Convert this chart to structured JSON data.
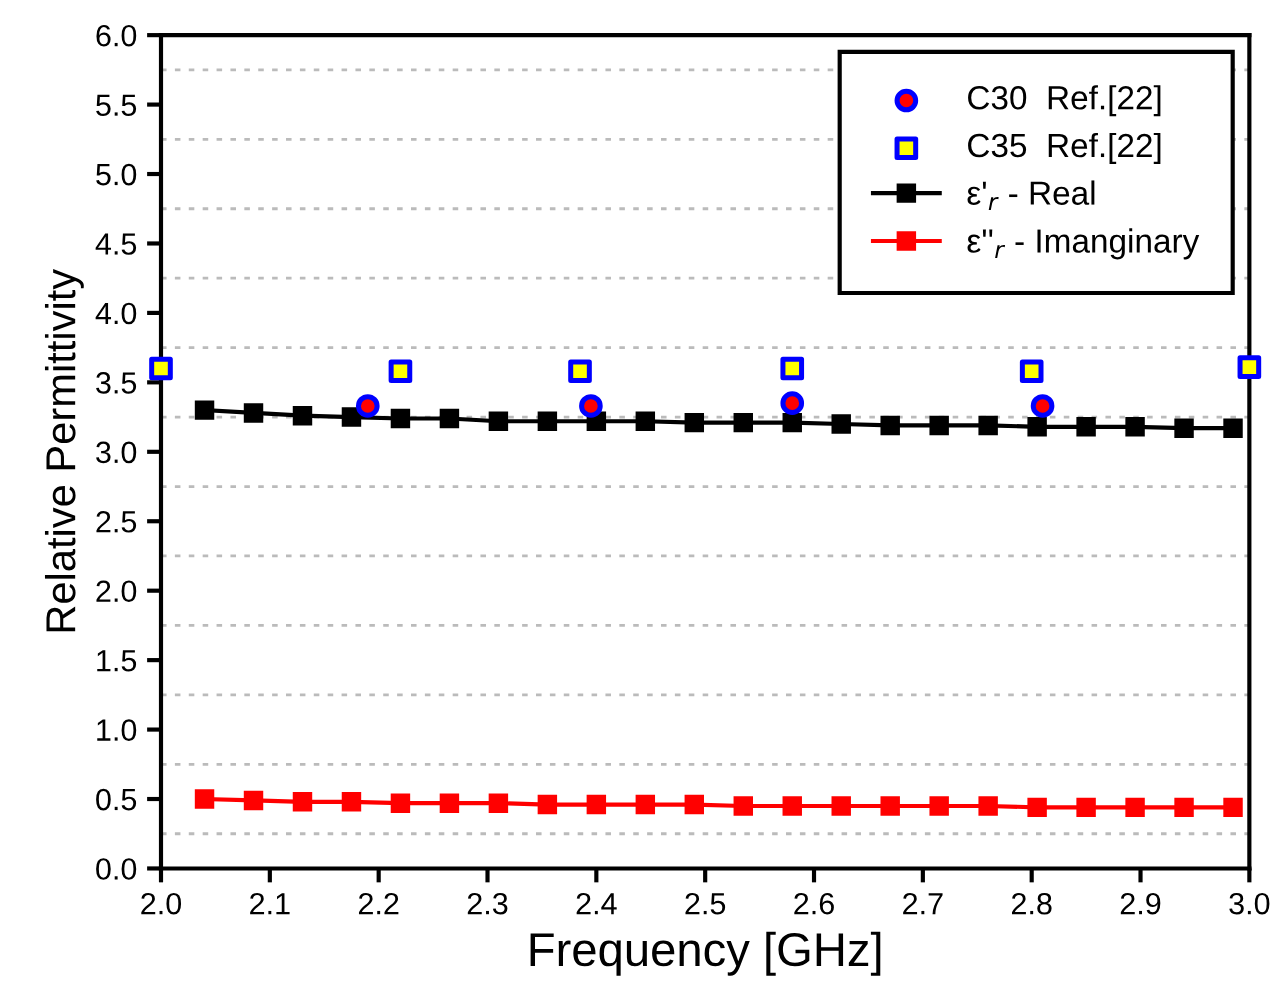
{
  "chart_data": {
    "type": "line",
    "xlabel": "Frequency [GHz]",
    "ylabel": "Relative Permittivity",
    "xlim": [
      2.0,
      3.0
    ],
    "xticks": [
      {
        "value": 2.0,
        "label": "2.0"
      },
      2.1,
      2.2,
      2.3,
      2.4,
      2.5,
      2.6,
      2.7,
      2.8,
      2.9,
      {
        "value": 3.0,
        "label": "3.0"
      }
    ],
    "ylim": [
      0,
      6
    ],
    "yticks": [
      {
        "value": 0,
        "label": "0.0"
      },
      {
        "value": 0.25,
        "label": null
      },
      0.5,
      {
        "value": 0.75,
        "label": null
      },
      {
        "value": 1,
        "label": "1.0"
      },
      {
        "value": 1.25,
        "label": null
      },
      1.5,
      {
        "value": 1.75,
        "label": null
      },
      {
        "value": 2,
        "label": "2.0"
      },
      {
        "value": 2.25,
        "label": null
      },
      2.5,
      {
        "value": 2.75,
        "label": null
      },
      {
        "value": 3,
        "label": "3.0"
      },
      {
        "value": 3.25,
        "label": null
      },
      3.5,
      {
        "value": 3.75,
        "label": null
      },
      {
        "value": 4,
        "label": "4.0"
      },
      {
        "value": 4.25,
        "label": null
      },
      4.5,
      {
        "value": 4.75,
        "label": null
      },
      {
        "value": 5,
        "label": "5.0"
      },
      {
        "value": 5.25,
        "label": null
      },
      5.5,
      {
        "value": 5.75,
        "label": null
      },
      {
        "value": 6,
        "label": "6.0"
      }
    ],
    "grid": "y",
    "legend": "top right",
    "series": [
      {
        "name": "C30  Ref.[22]",
        "type": "scatter",
        "marker": "circle",
        "color": "#ff0000",
        "x": [
          2.19,
          2.395,
          2.58,
          2.81
        ],
        "values": [
          3.33,
          3.33,
          3.35,
          3.33
        ]
      },
      {
        "name": "C35  Ref.[22]",
        "type": "scatter",
        "marker": "square",
        "color": "#ffff00",
        "x": [
          2.0,
          2.22,
          2.385,
          2.58,
          2.8,
          3.0
        ],
        "values": [
          3.6,
          3.58,
          3.58,
          3.6,
          3.58,
          3.61
        ]
      },
      {
        "name": "ε'$_{r}$ - Real",
        "marker": "square",
        "color": "#000000",
        "x": [
          2.04,
          2.085,
          2.13,
          2.175,
          2.22,
          2.265,
          2.31,
          2.355,
          2.4,
          2.445,
          2.49,
          2.535,
          2.58,
          2.625,
          2.67,
          2.715,
          2.76,
          2.805,
          2.85,
          2.895,
          2.94,
          2.985
        ],
        "values": [
          3.3,
          3.28,
          3.26,
          3.25,
          3.24,
          3.24,
          3.22,
          3.22,
          3.22,
          3.22,
          3.21,
          3.21,
          3.21,
          3.2,
          3.19,
          3.19,
          3.19,
          3.18,
          3.18,
          3.18,
          3.17,
          3.17
        ]
      },
      {
        "name": "ε''$_{r}$ - Imanginary",
        "marker": "square",
        "color": "#ff0000",
        "x": [
          2.04,
          2.085,
          2.13,
          2.175,
          2.22,
          2.265,
          2.31,
          2.355,
          2.4,
          2.445,
          2.49,
          2.535,
          2.58,
          2.625,
          2.67,
          2.715,
          2.76,
          2.805,
          2.85,
          2.895,
          2.94,
          2.985
        ],
        "values": [
          0.5,
          0.49,
          0.48,
          0.48,
          0.47,
          0.47,
          0.47,
          0.46,
          0.46,
          0.46,
          0.46,
          0.45,
          0.45,
          0.45,
          0.45,
          0.45,
          0.45,
          0.44,
          0.44,
          0.44,
          0.44,
          0.44
        ]
      }
    ]
  }
}
